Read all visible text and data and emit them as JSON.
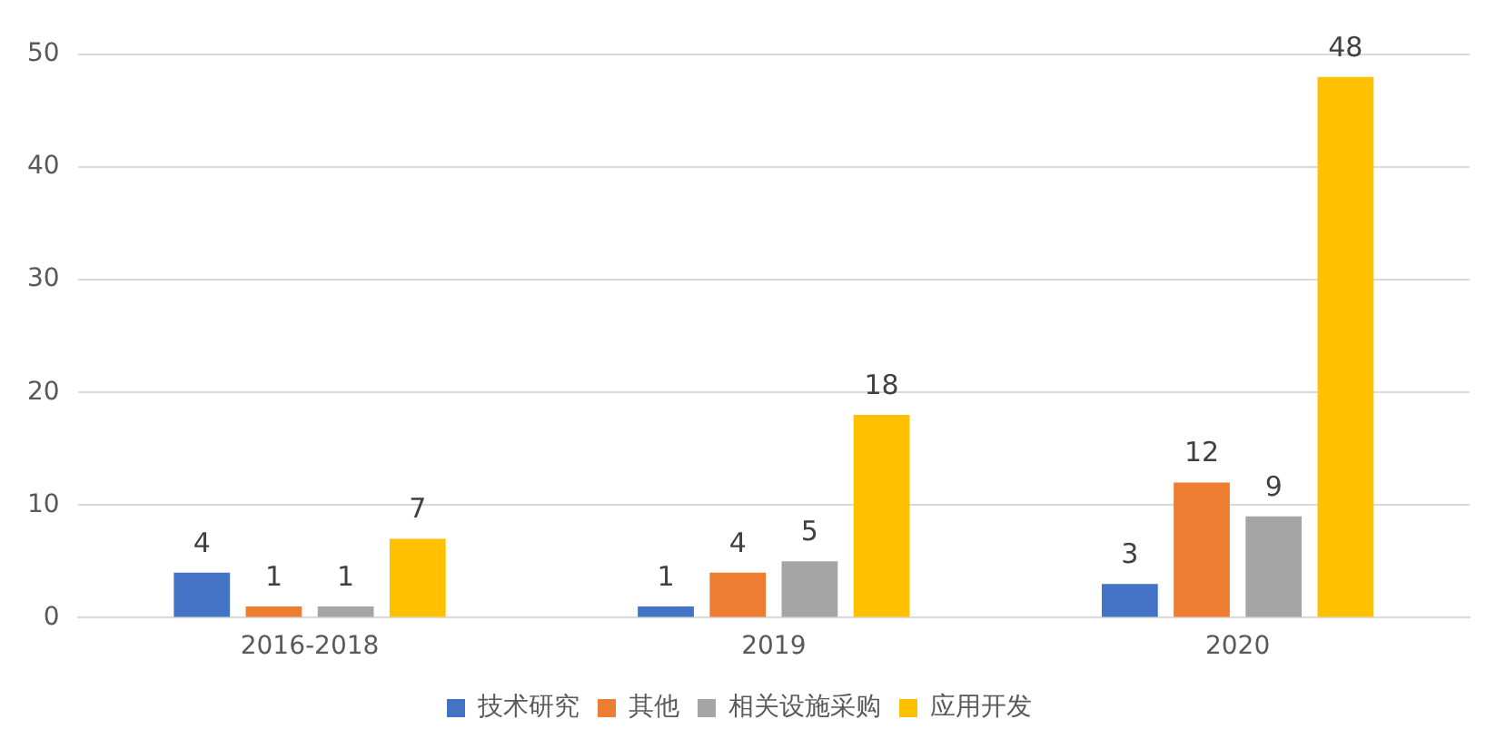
{
  "chart_data": {
    "type": "bar",
    "categories": [
      "2016-2018",
      "2019",
      "2020"
    ],
    "series": [
      {
        "name": "技术研究",
        "color": "#4472c4",
        "values": [
          4,
          1,
          3
        ]
      },
      {
        "name": "其他",
        "color": "#ed7d31",
        "values": [
          1,
          4,
          12
        ]
      },
      {
        "name": "相关设施采购",
        "color": "#a5a5a5",
        "values": [
          1,
          5,
          9
        ]
      },
      {
        "name": "应用开发",
        "color": "#ffc000",
        "values": [
          7,
          18,
          48
        ]
      }
    ],
    "ylim": [
      0,
      50
    ],
    "yticks": [
      0,
      10,
      20,
      30,
      40,
      50
    ],
    "grid": "y",
    "legend": "bottom",
    "data_labels": true
  }
}
